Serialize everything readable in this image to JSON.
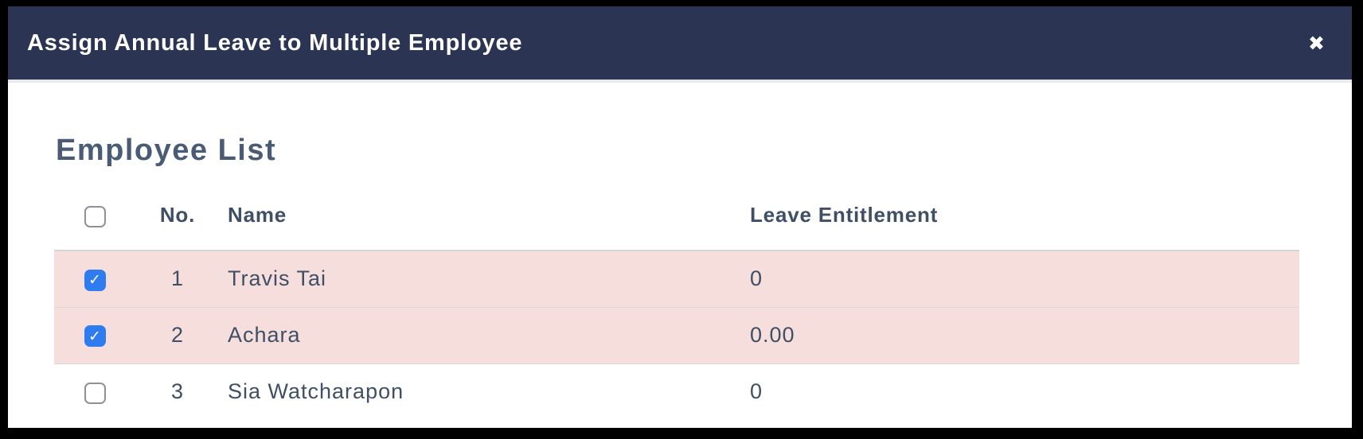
{
  "modal": {
    "title": "Assign Annual Leave to Multiple Employee"
  },
  "icons": {
    "close": "✖",
    "check": "✓"
  },
  "section": {
    "heading": "Employee List"
  },
  "table": {
    "headers": {
      "no": "No.",
      "name": "Name",
      "leave": "Leave Entitlement"
    },
    "select_all_checked": false,
    "rows": [
      {
        "no": "1",
        "name": "Travis Tai",
        "leave": "0",
        "checked": true
      },
      {
        "no": "2",
        "name": "Achara",
        "leave": "0.00",
        "checked": true
      },
      {
        "no": "3",
        "name": "Sia Watcharapon",
        "leave": "0",
        "checked": false
      }
    ]
  },
  "colors": {
    "header_bg": "#2b3452",
    "header_text": "#ffffff",
    "body_bg": "#ffffff",
    "heading_text": "#4a5b75",
    "table_text": "#3e4f66",
    "selected_row_bg": "#f5dedb",
    "checkbox_checked_bg": "#2f7cf0",
    "checkbox_border": "#8d9299",
    "frame_border": "#000000",
    "divider": "#d9d9d9"
  }
}
